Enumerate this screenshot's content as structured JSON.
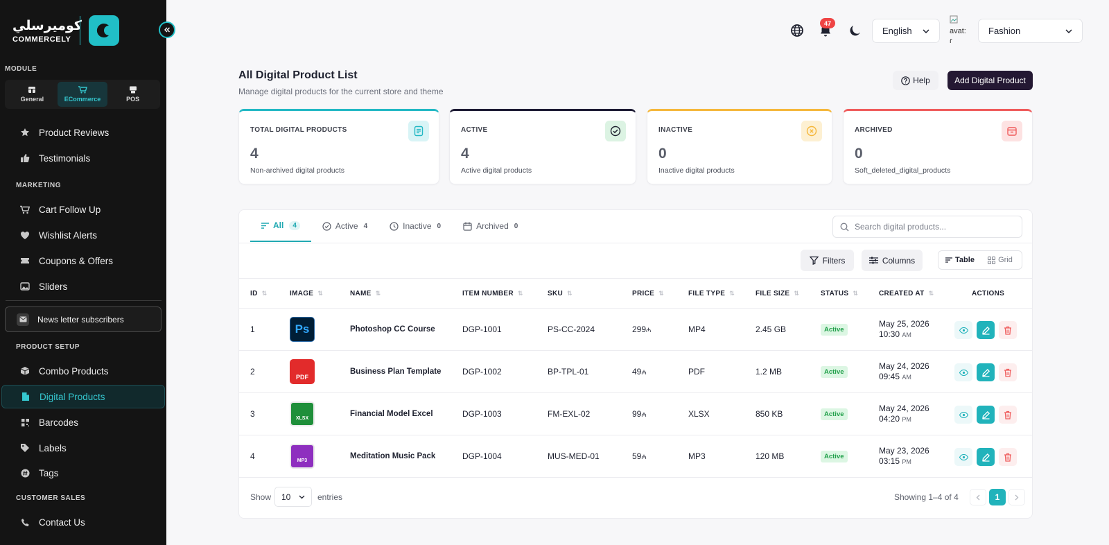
{
  "brand": {
    "arabic": "كوميرسلي",
    "english": "COMMERCELY",
    "logo_letter": "C"
  },
  "sidebar": {
    "module_title": "MODULE",
    "modules": [
      {
        "label": "General",
        "icon": "store-icon"
      },
      {
        "label": "ECommerce",
        "icon": "cart-icon",
        "active": true
      },
      {
        "label": "POS",
        "icon": "pos-terminal-icon"
      }
    ],
    "items_top": [
      {
        "label": "Product Reviews",
        "icon": "star-icon"
      },
      {
        "label": "Testimonials",
        "icon": "thumbs-up-icon"
      }
    ],
    "marketing_title": "MARKETING",
    "marketing": [
      {
        "label": "Cart Follow Up",
        "icon": "cart-icon"
      },
      {
        "label": "Wishlist Alerts",
        "icon": "heart-icon"
      },
      {
        "label": "Coupons & Offers",
        "icon": "ticket-icon"
      },
      {
        "label": "Sliders",
        "icon": "image-icon"
      }
    ],
    "newsletter": "News letter subscribers",
    "product_setup_title": "PRODUCT SETUP",
    "product_setup": [
      {
        "label": "Combo Products",
        "icon": "box-icon"
      },
      {
        "label": "Digital Products",
        "icon": "file-icon",
        "active": true
      },
      {
        "label": "Barcodes",
        "icon": "qr-icon"
      },
      {
        "label": "Labels",
        "icon": "tag-icon"
      },
      {
        "label": "Tags",
        "icon": "hash-icon"
      }
    ],
    "customer_sales_title": "CUSTOMER SALES",
    "customer_sales": [
      {
        "label": "Contact Us",
        "icon": "phone-icon"
      }
    ]
  },
  "topbar": {
    "notifications_count": "47",
    "language": "English",
    "avatar_alt": "avat:",
    "avatar_alt2": "ɾ",
    "store": "Fashion"
  },
  "header": {
    "title": "All Digital Product List",
    "subtitle": "Manage digital products for the current store and theme",
    "help": "Help",
    "add": "Add Digital Product"
  },
  "stats": [
    {
      "label": "TOTAL DIGITAL PRODUCTS",
      "value": "4",
      "note": "Non-archived digital products",
      "color": "#22b8c4"
    },
    {
      "label": "ACTIVE",
      "value": "4",
      "note": "Active digital products",
      "color": "#1c1a33"
    },
    {
      "label": "INACTIVE",
      "value": "0",
      "note": "Inactive digital products",
      "color": "#f5b73b"
    },
    {
      "label": "ARCHIVED",
      "value": "0",
      "note": "Soft_deleted_digital_products",
      "color": "#ef5b5b"
    }
  ],
  "tabs": [
    {
      "label": "All",
      "count": "4"
    },
    {
      "label": "Active",
      "count": "4"
    },
    {
      "label": "Inactive",
      "count": "0"
    },
    {
      "label": "Archived",
      "count": "0"
    }
  ],
  "search": {
    "placeholder": "Search digital products..."
  },
  "toolbar": {
    "filters": "Filters",
    "columns": "Columns",
    "table": "Table",
    "grid": "Grid"
  },
  "table": {
    "headers": [
      "ID",
      "IMAGE",
      "NAME",
      "ITEM NUMBER",
      "SKU",
      "PRICE",
      "FILE TYPE",
      "FILE SIZE",
      "STATUS",
      "CREATED AT",
      "ACTIONS"
    ],
    "rows": [
      {
        "id": "1",
        "thumb": "Ps",
        "name": "Photoshop CC Course",
        "item": "DGP-1001",
        "sku": "PS-CC-2024",
        "price": "299",
        "currency": "₼",
        "type": "MP4",
        "size": "2.45 GB",
        "status": "Active",
        "date": "May 25, 2026",
        "time": "10:30",
        "ampm": "AM"
      },
      {
        "id": "2",
        "thumb": "PDF",
        "name": "Business Plan Template",
        "item": "DGP-1002",
        "sku": "BP-TPL-01",
        "price": "49",
        "currency": "₼",
        "type": "PDF",
        "size": "1.2 MB",
        "status": "Active",
        "date": "May 24, 2026",
        "time": "09:45",
        "ampm": "AM"
      },
      {
        "id": "3",
        "thumb": "XLSX",
        "name": "Financial Model Excel",
        "item": "DGP-1003",
        "sku": "FM-EXL-02",
        "price": "99",
        "currency": "₼",
        "type": "XLSX",
        "size": "850 KB",
        "status": "Active",
        "date": "May 24, 2026",
        "time": "04:20",
        "ampm": "PM"
      },
      {
        "id": "4",
        "thumb": "MP3",
        "name": "Meditation Music Pack",
        "item": "DGP-1004",
        "sku": "MUS-MED-01",
        "price": "59",
        "currency": "₼",
        "type": "MP3",
        "size": "120 MB",
        "status": "Active",
        "date": "May 23, 2026",
        "time": "03:15",
        "ampm": "PM"
      }
    ]
  },
  "footer": {
    "show": "Show",
    "entries_value": "10",
    "entries": "entries",
    "showing": "Showing 1–4 of 4",
    "page": "1"
  }
}
